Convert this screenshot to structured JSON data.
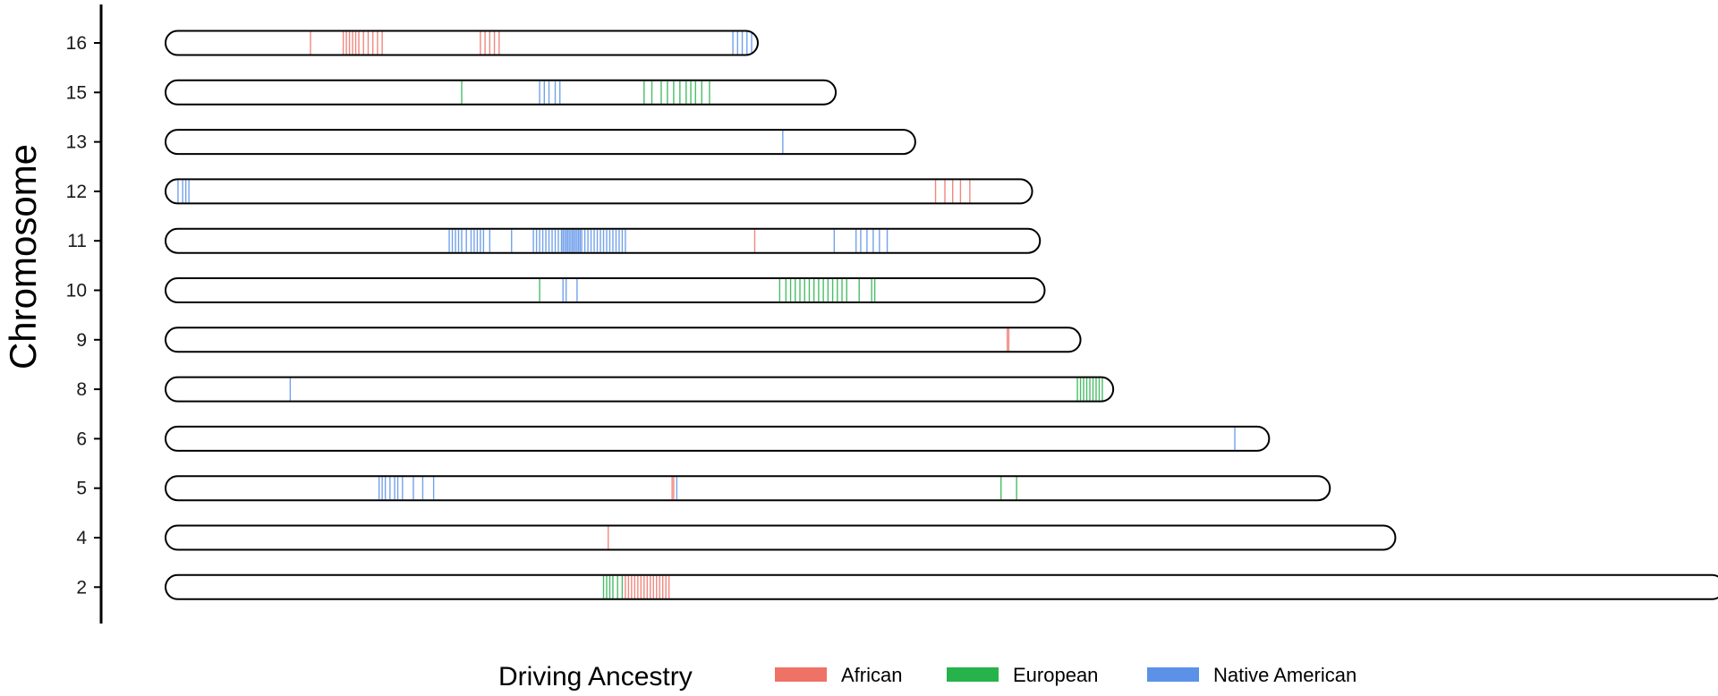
{
  "chart_data": {
    "type": "chromosome-ideogram",
    "ylabel": "Chromosome",
    "x_extent": [
      0,
      1000
    ],
    "chromosomes": [
      {
        "name": "16",
        "length": 380
      },
      {
        "name": "15",
        "length": 430
      },
      {
        "name": "13",
        "length": 481
      },
      {
        "name": "12",
        "length": 556
      },
      {
        "name": "11",
        "length": 561
      },
      {
        "name": "10",
        "length": 564
      },
      {
        "name": "9",
        "length": 587
      },
      {
        "name": "8",
        "length": 608
      },
      {
        "name": "6",
        "length": 708
      },
      {
        "name": "5",
        "length": 747
      },
      {
        "name": "4",
        "length": 789
      },
      {
        "name": "2",
        "length": 1000
      }
    ],
    "legend": {
      "title": "Driving Ancestry",
      "position": "bottom",
      "entries": [
        {
          "key": "African",
          "label": "African",
          "color": "#ef7267"
        },
        {
          "key": "European",
          "label": "European",
          "color": "#27b34b"
        },
        {
          "key": "Native American",
          "label": "Native American",
          "color": "#5b92e8"
        }
      ]
    },
    "markers": {
      "16": {
        "African": [
          93,
          114,
          116,
          118,
          120,
          122,
          124,
          127,
          130,
          133,
          136,
          139,
          202,
          205,
          208,
          211,
          214
        ],
        "Native American": [
          364,
          367,
          370,
          373,
          376
        ]
      },
      "15": {
        "European": [
          190,
          307,
          312,
          318,
          322,
          326,
          330,
          334,
          337,
          340,
          344,
          349
        ],
        "Native American": [
          240,
          243,
          246,
          250,
          253
        ]
      },
      "13": {
        "Native American": [
          396
        ]
      },
      "12": {
        "Native American": [
          8,
          11,
          13,
          15
        ],
        "African": [
          494,
          500,
          505,
          510,
          516
        ]
      },
      "11": {
        "Native American": [
          182,
          184,
          186,
          188,
          190,
          193,
          196,
          198,
          200,
          202,
          204,
          208,
          222,
          236,
          238,
          240,
          242,
          244,
          246,
          248,
          250,
          252,
          254,
          255,
          256,
          257,
          258,
          259,
          260,
          261,
          262,
          263,
          264,
          265,
          266,
          267,
          269,
          271,
          273,
          275,
          277,
          279,
          281,
          283,
          285,
          287,
          289,
          291,
          293,
          295,
          429,
          443,
          446,
          450,
          454,
          458,
          463
        ],
        "African": [
          378
        ]
      },
      "10": {
        "European": [
          240,
          394,
          398,
          401,
          404,
          407,
          410,
          413,
          416,
          419,
          422,
          425,
          428,
          431,
          434,
          437,
          445,
          453,
          455
        ],
        "Native American": [
          255,
          257,
          264
        ]
      },
      "9": {
        "African": [
          540,
          541
        ]
      },
      "8": {
        "Native American": [
          80
        ],
        "European": [
          585,
          587,
          589,
          591,
          593,
          595,
          597,
          599,
          601
        ]
      },
      "6": {
        "Native American": [
          686
        ]
      },
      "5": {
        "Native American": [
          137,
          139,
          141,
          144,
          147,
          149,
          152,
          159,
          165,
          172
        ],
        "African": [
          325,
          326
        ],
        "European": [
          536,
          546
        ],
        "Native American 2": [
          328
        ]
      },
      "4": {
        "African": [
          284
        ]
      },
      "2": {
        "European": [
          281,
          283,
          285,
          287,
          290,
          293
        ],
        "African": [
          295,
          297,
          299,
          301,
          303,
          305,
          307,
          309,
          311,
          313,
          315,
          317,
          319,
          321,
          323
        ]
      }
    }
  }
}
